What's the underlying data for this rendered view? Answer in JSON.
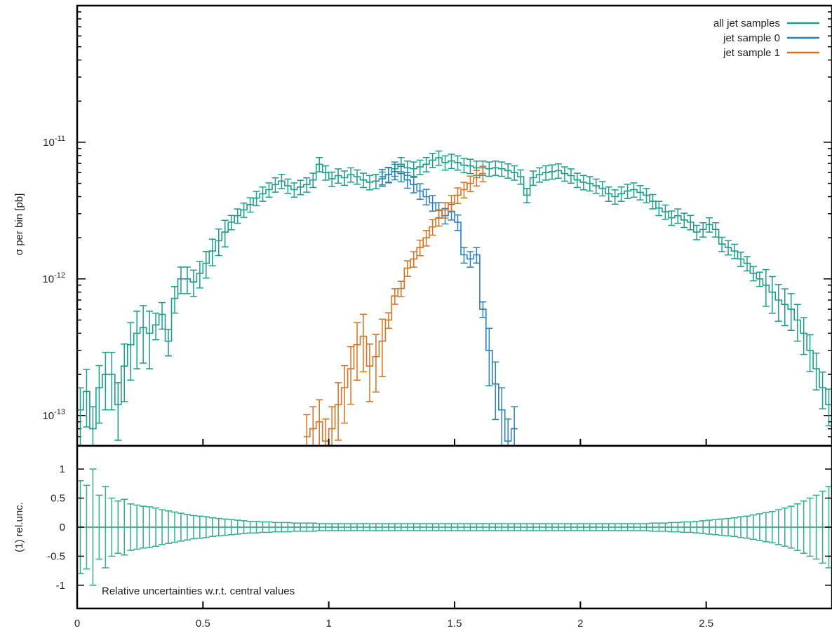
{
  "colors": {
    "all": "#1a9e8c",
    "sample0": "#2a7fc0",
    "sample1": "#d8711f",
    "frame": "#000000"
  },
  "labels": {
    "ylabel_top": "σ per bin [pb]",
    "ylabel_bottom": "(1) rel.unc.",
    "note": "Relative uncertainties w.r.t. central values"
  },
  "legend": {
    "placement": "top-right",
    "entries": [
      "all jet samples",
      "jet sample 0",
      "jet sample 1"
    ]
  },
  "ticks": {
    "x": [
      "0",
      "0.5",
      "1",
      "1.5",
      "2",
      "2.5"
    ],
    "y_top": [
      {
        "base": "10",
        "exp": "-11"
      },
      {
        "base": "10",
        "exp": "-12"
      },
      {
        "base": "10",
        "exp": "-13"
      }
    ],
    "y_bottom": [
      "1",
      "0.5",
      "0",
      "-0.5",
      "-1"
    ]
  },
  "chart_data": [
    {
      "type": "line",
      "panel": "top",
      "x_range": [
        0,
        3
      ],
      "y_range": [
        6e-14,
        1e-10
      ],
      "y_scale": "log",
      "bin_width": 0.025,
      "xlabel": "",
      "ylabel": "σ per bin [pb]",
      "legend_placement": "top-right",
      "series": [
        {
          "name": "all jet samples",
          "color": "#1a9e8c",
          "x": [
            0.0,
            0.025,
            0.05,
            0.075,
            0.1,
            0.125,
            0.15,
            0.175,
            0.2,
            0.225,
            0.25,
            0.275,
            0.3,
            0.325,
            0.35,
            0.375,
            0.4,
            0.425,
            0.45,
            0.475,
            0.5,
            0.525,
            0.55,
            0.575,
            0.6,
            0.625,
            0.65,
            0.675,
            0.7,
            0.725,
            0.75,
            0.775,
            0.8,
            0.825,
            0.85,
            0.875,
            0.9,
            0.925,
            0.95,
            0.975,
            1.0,
            1.025,
            1.05,
            1.075,
            1.1,
            1.125,
            1.15,
            1.175,
            1.2,
            1.225,
            1.25,
            1.275,
            1.3,
            1.325,
            1.35,
            1.375,
            1.4,
            1.425,
            1.45,
            1.475,
            1.5,
            1.525,
            1.55,
            1.575,
            1.6,
            1.625,
            1.65,
            1.675,
            1.7,
            1.725,
            1.75,
            1.775,
            1.8,
            1.825,
            1.85,
            1.875,
            1.9,
            1.925,
            1.95,
            1.975,
            2.0,
            2.025,
            2.05,
            2.075,
            2.1,
            2.125,
            2.15,
            2.175,
            2.2,
            2.225,
            2.25,
            2.275,
            2.3,
            2.325,
            2.35,
            2.375,
            2.4,
            2.425,
            2.45,
            2.475,
            2.5,
            2.525,
            2.55,
            2.575,
            2.6,
            2.625,
            2.65,
            2.675,
            2.7,
            2.725,
            2.75,
            2.775,
            2.8,
            2.825,
            2.85,
            2.875,
            2.9,
            2.925,
            2.95,
            2.975
          ],
          "y": [
            1.1e-13,
            1.5e-13,
            8e-14,
            1.6e-13,
            2e-13,
            2e-13,
            1.2e-13,
            2.3e-13,
            3.3e-13,
            4e-13,
            4.4e-13,
            4e-13,
            4.6e-13,
            5.5e-13,
            3.5e-13,
            7.2e-13,
            1e-12,
            1e-12,
            9.5e-13,
            1.1e-12,
            1.3e-12,
            1.6e-12,
            1.9e-12,
            2.2e-12,
            2.6e-12,
            2.9e-12,
            3.2e-12,
            3.5e-12,
            3.9e-12,
            4.2e-12,
            4.5e-12,
            4.9e-12,
            5.2e-12,
            4.8e-12,
            4.5e-12,
            4.7e-12,
            4.9e-12,
            5.3e-12,
            6.9e-12,
            6e-12,
            5.4e-12,
            5.7e-12,
            5.5e-12,
            5.8e-12,
            5.6e-12,
            5.3e-12,
            5.1e-12,
            5.2e-12,
            5.4e-12,
            5.8e-12,
            6.4e-12,
            6.9e-12,
            6.5e-12,
            6.4e-12,
            6.6e-12,
            6.9e-12,
            7.4e-12,
            7.7e-12,
            7.1e-12,
            7.3e-12,
            7.1e-12,
            6.8e-12,
            6.7e-12,
            6.5e-12,
            6.5e-12,
            6.4e-12,
            6.5e-12,
            6.4e-12,
            6.2e-12,
            6e-12,
            5.6e-12,
            4.1e-12,
            5.5e-12,
            5.8e-12,
            6e-12,
            6.1e-12,
            6.2e-12,
            5.9e-12,
            5.7e-12,
            5.3e-12,
            5.1e-12,
            5e-12,
            4.8e-12,
            4.6e-12,
            4.2e-12,
            4e-12,
            4.2e-12,
            4.4e-12,
            4.5e-12,
            4.3e-12,
            4.1e-12,
            3.7e-12,
            3.3e-12,
            3.1e-12,
            2.8e-12,
            2.9e-12,
            2.7e-12,
            2.6e-12,
            2.2e-12,
            2.3e-12,
            2.5e-12,
            2.3e-12,
            1.8e-12,
            1.7e-12,
            1.6e-12,
            1.4e-12,
            1.3e-12,
            1.1e-12,
            1e-12,
            9e-13,
            8e-13,
            7e-13,
            6.5e-13,
            6e-13,
            5e-13,
            4e-13,
            3e-13,
            2.2e-13,
            1.6e-13,
            1.2e-13
          ]
        },
        {
          "name": "jet sample 0",
          "color": "#2a7fc0",
          "x": [
            1.2,
            1.225,
            1.25,
            1.275,
            1.3,
            1.325,
            1.35,
            1.375,
            1.4,
            1.425,
            1.45,
            1.475,
            1.5,
            1.525,
            1.55,
            1.575,
            1.6,
            1.625,
            1.65,
            1.675,
            1.7,
            1.725
          ],
          "y": [
            5.6e-12,
            5.8e-12,
            6.1e-12,
            5.9e-12,
            5.3e-12,
            4.9e-12,
            4.4e-12,
            4e-12,
            3.6e-12,
            3.2e-12,
            2.9e-12,
            3.1e-12,
            2.6e-12,
            1.5e-12,
            1.4e-12,
            1.5e-12,
            6e-13,
            3e-13,
            1.7e-13,
            1.1e-13,
            6.5e-14,
            8e-14
          ]
        },
        {
          "name": "jet sample 1",
          "color": "#d8711f",
          "x": [
            0.9,
            0.925,
            0.95,
            0.975,
            1.0,
            1.025,
            1.05,
            1.075,
            1.1,
            1.125,
            1.15,
            1.175,
            1.2,
            1.225,
            1.25,
            1.275,
            1.3,
            1.325,
            1.35,
            1.375,
            1.4,
            1.425,
            1.45,
            1.475,
            1.5,
            1.525,
            1.55,
            1.575,
            1.6
          ],
          "y": [
            7e-14,
            8e-14,
            9e-14,
            6.5e-14,
            8e-14,
            1.2e-13,
            1.6e-13,
            2.2e-13,
            3.3e-13,
            3.8e-13,
            2.3e-13,
            2.7e-13,
            3.5e-13,
            5e-13,
            7.5e-13,
            8.5e-13,
            1.2e-12,
            1.4e-12,
            1.7e-12,
            2e-12,
            2.4e-12,
            2.8e-12,
            3.2e-12,
            3.6e-12,
            4.1e-12,
            4.5e-12,
            5e-12,
            5.5e-12,
            5.9e-12
          ]
        }
      ]
    },
    {
      "type": "line",
      "panel": "bottom",
      "x_range": [
        0,
        3
      ],
      "y_range": [
        -1.4,
        1.4
      ],
      "xlabel": "",
      "ylabel": "(1) rel.unc.",
      "series": [
        {
          "name": "all jet samples",
          "color": "#2fae8f",
          "x": [
            0.0,
            0.025,
            0.05,
            0.075,
            0.1,
            0.125,
            0.15,
            0.175,
            0.2,
            0.225,
            0.25,
            0.275,
            0.3,
            0.325,
            0.35,
            0.375,
            0.4,
            0.425,
            0.45,
            0.475,
            0.5,
            0.525,
            0.55,
            0.575,
            0.6,
            0.625,
            0.65,
            0.675,
            0.7,
            0.725,
            0.75,
            0.775,
            0.8,
            0.825,
            0.85,
            0.875,
            0.9,
            0.925,
            0.95,
            0.975,
            1.0,
            1.025,
            1.05,
            1.075,
            1.1,
            1.125,
            1.15,
            1.175,
            1.2,
            1.225,
            1.25,
            1.275,
            1.3,
            1.325,
            1.35,
            1.375,
            1.4,
            1.425,
            1.45,
            1.475,
            1.5,
            1.525,
            1.55,
            1.575,
            1.6,
            1.625,
            1.65,
            1.675,
            1.7,
            1.725,
            1.75,
            1.775,
            1.8,
            1.825,
            1.85,
            1.875,
            1.9,
            1.925,
            1.95,
            1.975,
            2.0,
            2.025,
            2.05,
            2.075,
            2.1,
            2.125,
            2.15,
            2.175,
            2.2,
            2.225,
            2.25,
            2.275,
            2.3,
            2.325,
            2.35,
            2.375,
            2.4,
            2.425,
            2.45,
            2.475,
            2.5,
            2.525,
            2.55,
            2.575,
            2.6,
            2.625,
            2.65,
            2.675,
            2.7,
            2.725,
            2.75,
            2.775,
            2.8,
            2.825,
            2.85,
            2.875,
            2.9,
            2.925,
            2.95,
            2.975
          ],
          "y_unc": [
            0.8,
            0.72,
            1.0,
            0.55,
            0.7,
            0.5,
            0.45,
            0.48,
            0.4,
            0.38,
            0.36,
            0.35,
            0.33,
            0.3,
            0.28,
            0.26,
            0.24,
            0.22,
            0.2,
            0.19,
            0.18,
            0.16,
            0.15,
            0.14,
            0.13,
            0.12,
            0.11,
            0.1,
            0.1,
            0.09,
            0.09,
            0.08,
            0.08,
            0.08,
            0.07,
            0.07,
            0.07,
            0.07,
            0.06,
            0.06,
            0.06,
            0.06,
            0.06,
            0.06,
            0.06,
            0.06,
            0.06,
            0.06,
            0.06,
            0.06,
            0.06,
            0.06,
            0.06,
            0.06,
            0.06,
            0.06,
            0.06,
            0.06,
            0.06,
            0.06,
            0.06,
            0.06,
            0.06,
            0.06,
            0.06,
            0.06,
            0.06,
            0.06,
            0.06,
            0.06,
            0.06,
            0.06,
            0.06,
            0.06,
            0.06,
            0.06,
            0.06,
            0.06,
            0.06,
            0.06,
            0.06,
            0.06,
            0.06,
            0.06,
            0.06,
            0.06,
            0.06,
            0.06,
            0.06,
            0.06,
            0.06,
            0.07,
            0.07,
            0.07,
            0.08,
            0.08,
            0.09,
            0.09,
            0.1,
            0.11,
            0.12,
            0.13,
            0.14,
            0.15,
            0.16,
            0.18,
            0.19,
            0.21,
            0.23,
            0.25,
            0.27,
            0.3,
            0.33,
            0.36,
            0.4,
            0.45,
            0.5,
            0.55,
            0.62,
            0.7
          ]
        }
      ]
    }
  ]
}
